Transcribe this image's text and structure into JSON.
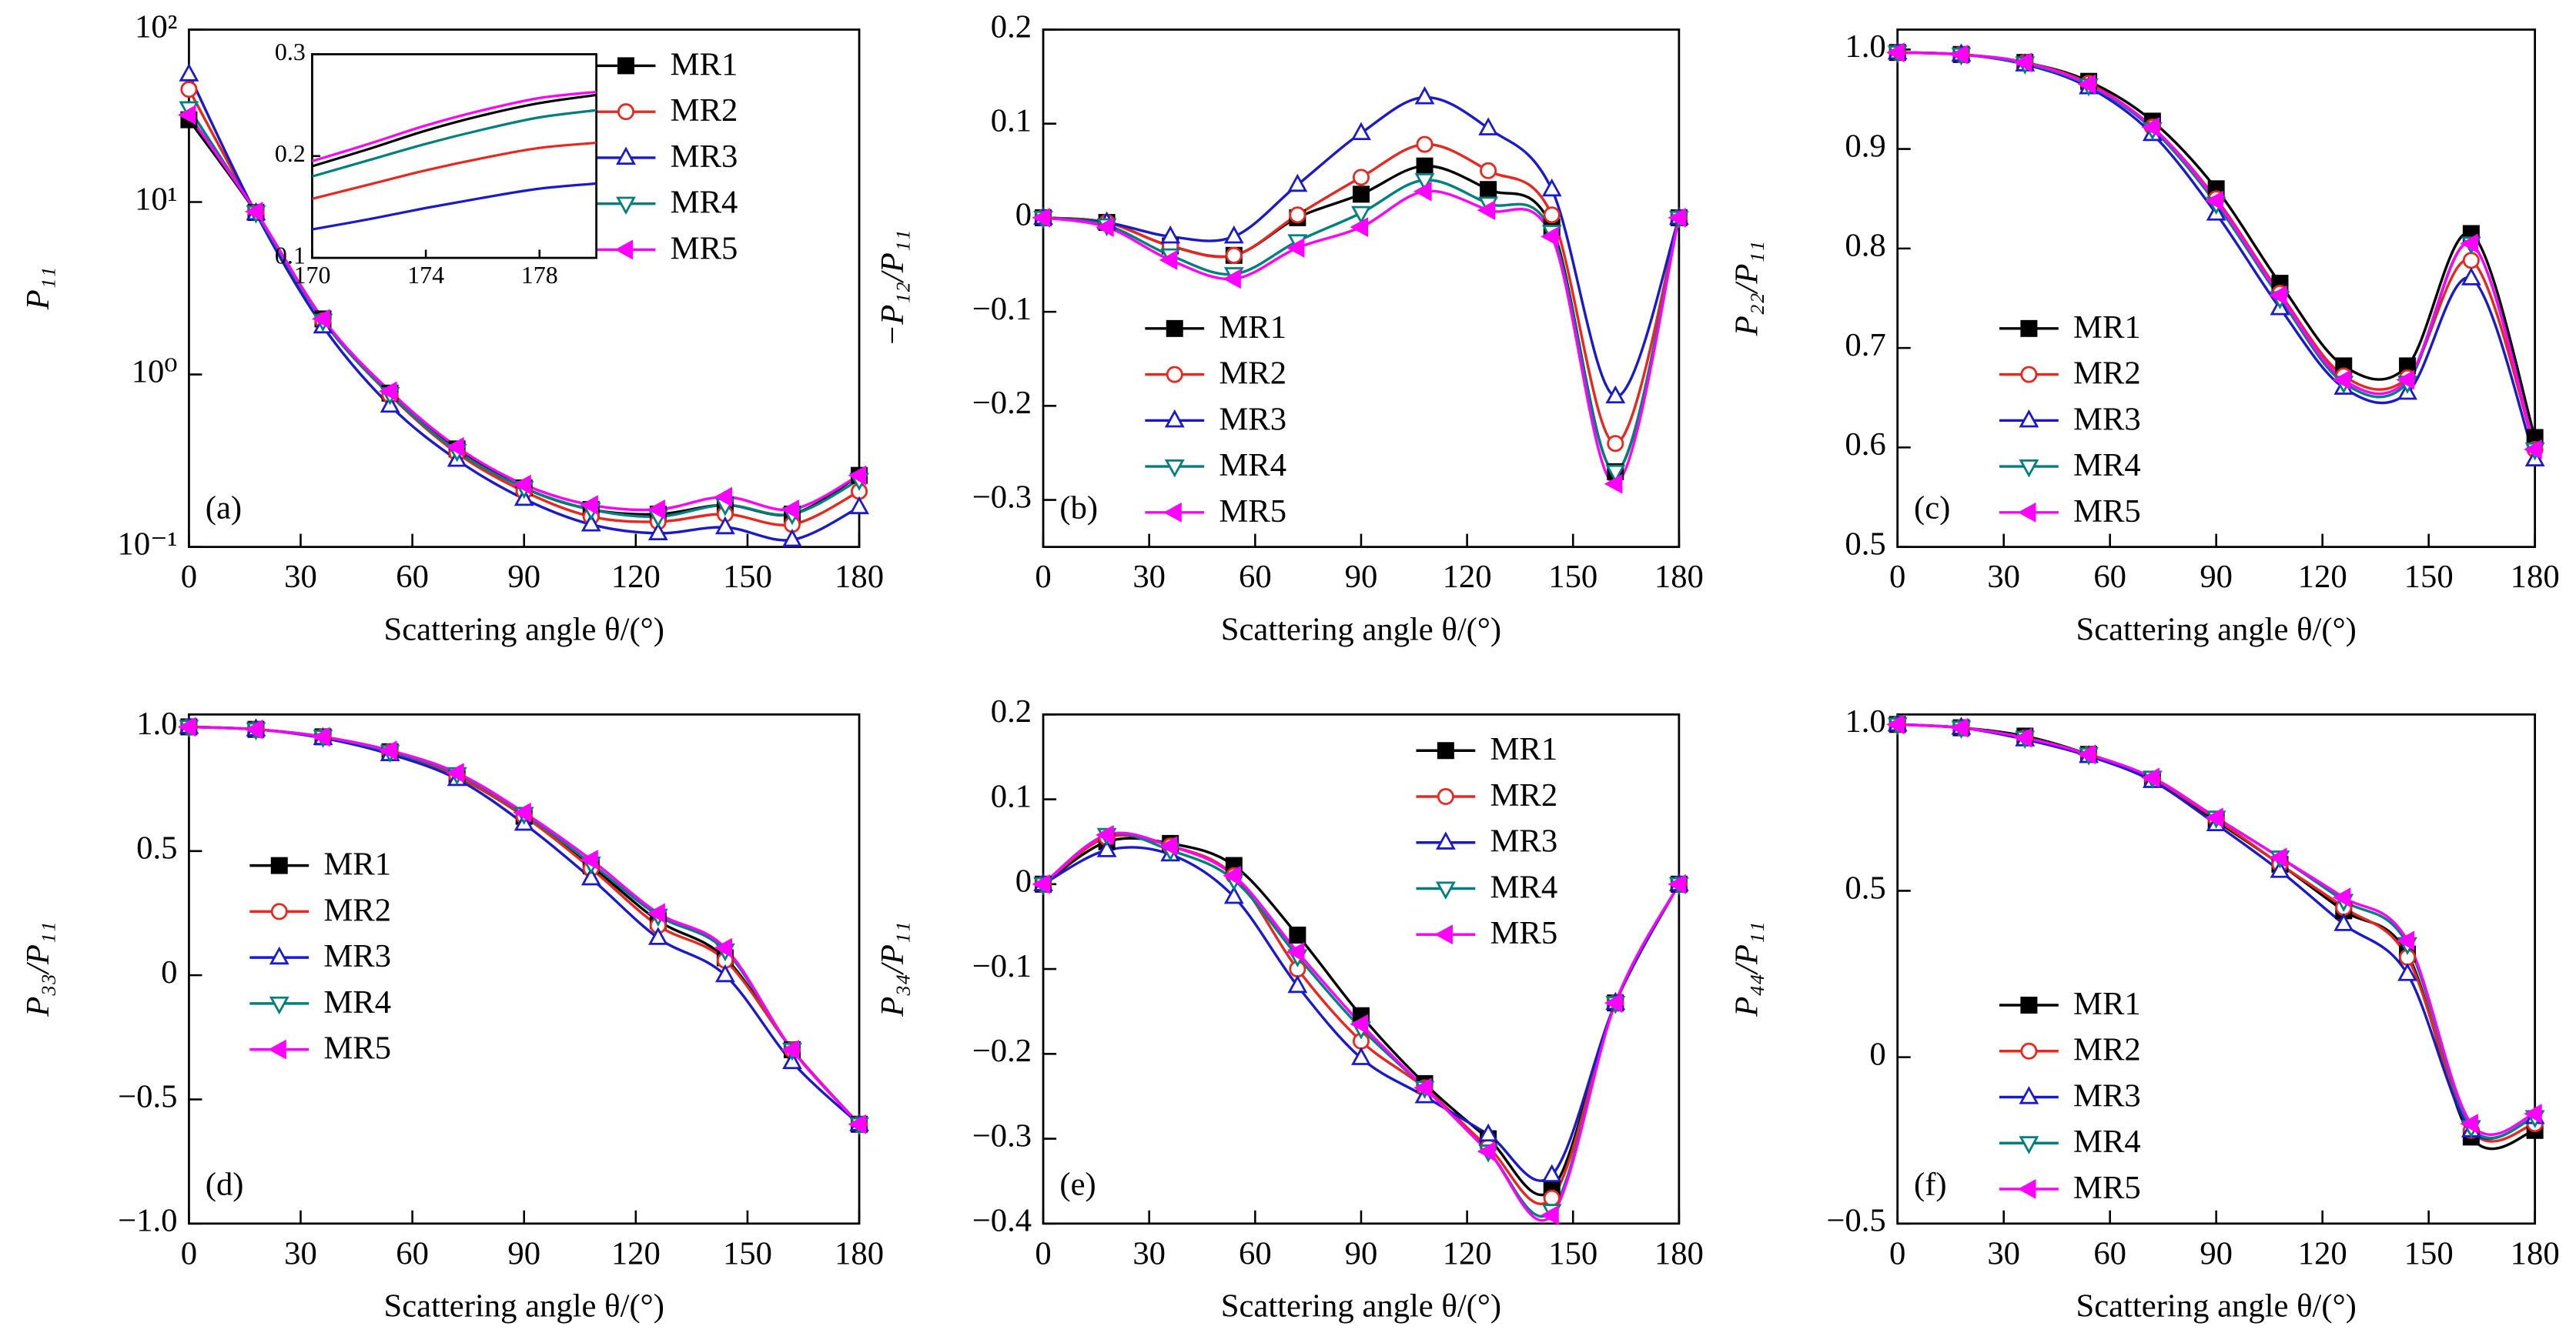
{
  "chart_data": [
    {
      "type": "line",
      "panel_label": "(a)",
      "ylabel": "P₁₁",
      "xlabel": "Scattering angle θ/(°)",
      "log": true,
      "xlim": [
        0,
        180
      ],
      "xticks": [
        0,
        30,
        60,
        90,
        120,
        150,
        180
      ],
      "ylim": [
        0.1,
        100
      ],
      "yticks": [
        {
          "value": 0.1,
          "label": "10⁻¹"
        },
        {
          "value": 1,
          "label": "10⁰"
        },
        {
          "value": 10,
          "label": "10¹"
        },
        {
          "value": 100,
          "label": "10²"
        }
      ],
      "legend": "upper right",
      "x": [
        0,
        18,
        36,
        54,
        72,
        90,
        108,
        126,
        144,
        162,
        180
      ],
      "series": [
        {
          "name": "MR1",
          "color": "#000000",
          "marker": "square",
          "values": [
            30,
            8.7,
            2.1,
            0.78,
            0.37,
            0.22,
            0.165,
            0.155,
            0.175,
            0.155,
            0.26
          ]
        },
        {
          "name": "MR2",
          "color": "#e8281e",
          "marker": "circle",
          "values": [
            45,
            8.7,
            2.05,
            0.76,
            0.35,
            0.21,
            0.15,
            0.14,
            0.155,
            0.135,
            0.21
          ]
        },
        {
          "name": "MR3",
          "color": "#1a1acc",
          "marker": "triangle-up",
          "values": [
            55,
            8.6,
            1.9,
            0.66,
            0.32,
            0.19,
            0.135,
            0.12,
            0.13,
            0.11,
            0.17
          ]
        },
        {
          "name": "MR4",
          "color": "#007f7f",
          "marker": "triangle-down",
          "values": [
            35,
            8.7,
            2.05,
            0.77,
            0.36,
            0.22,
            0.165,
            0.15,
            0.175,
            0.155,
            0.245
          ]
        },
        {
          "name": "MR5",
          "color": "#ff00ff",
          "marker": "triangle-left",
          "values": [
            32,
            8.8,
            2.1,
            0.8,
            0.38,
            0.23,
            0.175,
            0.165,
            0.195,
            0.165,
            0.26
          ]
        }
      ],
      "inset": {
        "xlim": [
          170,
          180
        ],
        "xticks": [
          170,
          174,
          178
        ],
        "ylim": [
          0.1,
          0.3
        ],
        "yticks": [
          0.1,
          0.2,
          0.3
        ],
        "x": [
          170,
          172,
          174,
          176,
          178,
          180
        ],
        "series": [
          {
            "color": "#000000",
            "values": [
              0.19,
              0.207,
              0.225,
              0.24,
              0.252,
              0.26
            ]
          },
          {
            "color": "#e8281e",
            "values": [
              0.158,
              0.172,
              0.186,
              0.198,
              0.208,
              0.213
            ]
          },
          {
            "color": "#1a1acc",
            "values": [
              0.128,
              0.138,
              0.149,
              0.159,
              0.168,
              0.173
            ]
          },
          {
            "color": "#007f7f",
            "values": [
              0.18,
              0.196,
              0.212,
              0.226,
              0.238,
              0.245
            ]
          },
          {
            "color": "#ff00ff",
            "values": [
              0.195,
              0.212,
              0.23,
              0.245,
              0.257,
              0.263
            ]
          }
        ]
      }
    },
    {
      "type": "line",
      "panel_label": "(b)",
      "ylabel": "−P₁₂/P₁₁",
      "xlabel": "Scattering angle θ/(°)",
      "xlim": [
        0,
        180
      ],
      "xticks": [
        0,
        30,
        60,
        90,
        120,
        150,
        180
      ],
      "ylim": [
        -0.35,
        0.2
      ],
      "yticks": [
        {
          "value": -0.3,
          "label": "−0.3"
        },
        {
          "value": -0.2,
          "label": "−0.2"
        },
        {
          "value": -0.1,
          "label": "−0.1"
        },
        0,
        0.1,
        0.2
      ],
      "legend": "lower left",
      "x": [
        0,
        18,
        36,
        54,
        72,
        90,
        108,
        126,
        144,
        162,
        180
      ],
      "series": [
        {
          "name": "MR1",
          "color": "#000000",
          "marker": "square",
          "values": [
            0,
            -0.005,
            -0.03,
            -0.04,
            0,
            0.025,
            0.055,
            0.03,
            -0.01,
            -0.27,
            0
          ]
        },
        {
          "name": "MR2",
          "color": "#e8281e",
          "marker": "circle",
          "values": [
            0,
            -0.005,
            -0.03,
            -0.04,
            0.003,
            0.043,
            0.078,
            0.05,
            0.003,
            -0.24,
            0
          ]
        },
        {
          "name": "MR3",
          "color": "#1a1acc",
          "marker": "triangle-up",
          "values": [
            0,
            -0.005,
            -0.02,
            -0.02,
            0.035,
            0.09,
            0.128,
            0.095,
            0.03,
            -0.19,
            0
          ]
        },
        {
          "name": "MR4",
          "color": "#007f7f",
          "marker": "triangle-down",
          "values": [
            0,
            -0.008,
            -0.04,
            -0.06,
            -0.025,
            0.005,
            0.04,
            0.015,
            -0.015,
            -0.27,
            0
          ]
        },
        {
          "name": "MR5",
          "color": "#ff00ff",
          "marker": "triangle-left",
          "values": [
            0,
            -0.01,
            -0.045,
            -0.065,
            -0.032,
            -0.01,
            0.028,
            0.008,
            -0.02,
            -0.283,
            0
          ]
        }
      ]
    },
    {
      "type": "line",
      "panel_label": "(c)",
      "ylabel": "P₂₂/P₁₁",
      "xlabel": "Scattering angle θ/(°)",
      "xlim": [
        0,
        180
      ],
      "xticks": [
        0,
        30,
        60,
        90,
        120,
        150,
        180
      ],
      "ylim": [
        0.5,
        1.02
      ],
      "yticks": [
        0.5,
        0.6,
        0.7,
        0.8,
        0.9,
        {
          "value": 1,
          "label": "1.0"
        }
      ],
      "legend": "lower left",
      "x": [
        0,
        18,
        36,
        54,
        72,
        90,
        108,
        126,
        144,
        162,
        180
      ],
      "series": [
        {
          "name": "MR1",
          "color": "#000000",
          "marker": "square",
          "values": [
            0.997,
            0.995,
            0.987,
            0.968,
            0.928,
            0.86,
            0.765,
            0.682,
            0.682,
            0.815,
            0.61
          ]
        },
        {
          "name": "MR2",
          "color": "#e8281e",
          "marker": "circle",
          "values": [
            0.997,
            0.995,
            0.987,
            0.966,
            0.922,
            0.85,
            0.755,
            0.672,
            0.67,
            0.788,
            0.598
          ]
        },
        {
          "name": "MR3",
          "color": "#1a1acc",
          "marker": "triangle-up",
          "values": [
            0.997,
            0.995,
            0.985,
            0.962,
            0.915,
            0.835,
            0.74,
            0.66,
            0.655,
            0.77,
            0.588
          ]
        },
        {
          "name": "MR4",
          "color": "#007f7f",
          "marker": "triangle-down",
          "values": [
            0.997,
            0.995,
            0.986,
            0.964,
            0.92,
            0.845,
            0.75,
            0.665,
            0.665,
            0.805,
            0.598
          ]
        },
        {
          "name": "MR5",
          "color": "#ff00ff",
          "marker": "triangle-left",
          "values": [
            0.997,
            0.995,
            0.987,
            0.965,
            0.922,
            0.848,
            0.753,
            0.668,
            0.668,
            0.805,
            0.598
          ]
        }
      ]
    },
    {
      "type": "line",
      "panel_label": "(d)",
      "ylabel": "P₃₃/P₁₁",
      "xlabel": "Scattering angle θ/(°)",
      "xlim": [
        0,
        180
      ],
      "xticks": [
        0,
        30,
        60,
        90,
        120,
        150,
        180
      ],
      "ylim": [
        -1,
        1.05
      ],
      "yticks": [
        {
          "value": -1,
          "label": "−1.0"
        },
        {
          "value": -0.5,
          "label": "−0.5"
        },
        0,
        0.5,
        {
          "value": 1,
          "label": "1.0"
        }
      ],
      "legend": "center left",
      "x": [
        0,
        18,
        36,
        54,
        72,
        90,
        108,
        126,
        144,
        162,
        180
      ],
      "series": [
        {
          "name": "MR1",
          "color": "#000000",
          "marker": "square",
          "values": [
            1,
            0.99,
            0.96,
            0.9,
            0.8,
            0.64,
            0.44,
            0.22,
            0.07,
            -0.3,
            -0.6
          ]
        },
        {
          "name": "MR2",
          "color": "#e8281e",
          "marker": "circle",
          "values": [
            1,
            0.99,
            0.96,
            0.9,
            0.8,
            0.64,
            0.43,
            0.2,
            0.06,
            -0.3,
            -0.6
          ]
        },
        {
          "name": "MR3",
          "color": "#1a1acc",
          "marker": "triangle-up",
          "values": [
            1,
            0.99,
            0.955,
            0.89,
            0.79,
            0.61,
            0.39,
            0.15,
            0,
            -0.35,
            -0.6
          ]
        },
        {
          "name": "MR4",
          "color": "#007f7f",
          "marker": "triangle-down",
          "values": [
            1,
            0.99,
            0.96,
            0.9,
            0.81,
            0.65,
            0.45,
            0.24,
            0.1,
            -0.3,
            -0.6
          ]
        },
        {
          "name": "MR5",
          "color": "#ff00ff",
          "marker": "triangle-left",
          "values": [
            1,
            0.99,
            0.96,
            0.905,
            0.815,
            0.655,
            0.465,
            0.25,
            0.11,
            -0.3,
            -0.6
          ]
        }
      ]
    },
    {
      "type": "line",
      "panel_label": "(e)",
      "ylabel": "P₃₄/P₁₁",
      "xlabel": "Scattering angle θ/(°)",
      "xlim": [
        0,
        180
      ],
      "xticks": [
        0,
        30,
        60,
        90,
        120,
        150,
        180
      ],
      "ylim": [
        -0.4,
        0.2
      ],
      "yticks": [
        {
          "value": -0.4,
          "label": "−0.4"
        },
        {
          "value": -0.3,
          "label": "−0.3"
        },
        {
          "value": -0.2,
          "label": "−0.2"
        },
        {
          "value": -0.1,
          "label": "−0.1"
        },
        0,
        0.1,
        0.2
      ],
      "legend": "upper right",
      "x": [
        0,
        18,
        36,
        54,
        72,
        90,
        108,
        126,
        144,
        162,
        180
      ],
      "series": [
        {
          "name": "MR1",
          "color": "#000000",
          "marker": "square",
          "values": [
            0,
            0.05,
            0.048,
            0.022,
            -0.06,
            -0.155,
            -0.235,
            -0.3,
            -0.36,
            -0.14,
            0
          ]
        },
        {
          "name": "MR2",
          "color": "#e8281e",
          "marker": "circle",
          "values": [
            0,
            0.055,
            0.045,
            0.01,
            -0.1,
            -0.185,
            -0.24,
            -0.31,
            -0.37,
            -0.14,
            0
          ]
        },
        {
          "name": "MR3",
          "color": "#1a1acc",
          "marker": "triangle-up",
          "values": [
            0,
            0.04,
            0.035,
            -0.015,
            -0.12,
            -0.205,
            -0.25,
            -0.295,
            -0.343,
            -0.14,
            0
          ]
        },
        {
          "name": "MR4",
          "color": "#007f7f",
          "marker": "triangle-down",
          "values": [
            0,
            0.058,
            0.04,
            0.005,
            -0.085,
            -0.17,
            -0.24,
            -0.315,
            -0.385,
            -0.14,
            0
          ]
        },
        {
          "name": "MR5",
          "color": "#ff00ff",
          "marker": "triangle-left",
          "values": [
            0,
            0.058,
            0.045,
            0.01,
            -0.08,
            -0.165,
            -0.24,
            -0.315,
            -0.39,
            -0.14,
            0
          ]
        }
      ]
    },
    {
      "type": "line",
      "panel_label": "(f)",
      "ylabel": "P₄₄/P₁₁",
      "xlabel": "Scattering angle θ/(°)",
      "xlim": [
        0,
        180
      ],
      "xticks": [
        0,
        30,
        60,
        90,
        120,
        150,
        180
      ],
      "ylim": [
        -0.5,
        1.03
      ],
      "yticks": [
        {
          "value": -0.5,
          "label": "−0.5"
        },
        0,
        0.5,
        {
          "value": 1,
          "label": "1.0"
        }
      ],
      "legend": "lower left",
      "x": [
        0,
        18,
        36,
        54,
        72,
        90,
        108,
        126,
        144,
        162,
        180
      ],
      "series": [
        {
          "name": "MR1",
          "color": "#000000",
          "marker": "square",
          "values": [
            1,
            0.99,
            0.965,
            0.91,
            0.835,
            0.71,
            0.58,
            0.44,
            0.31,
            -0.24,
            -0.22
          ]
        },
        {
          "name": "MR2",
          "color": "#e8281e",
          "marker": "circle",
          "values": [
            1,
            0.99,
            0.96,
            0.91,
            0.835,
            0.715,
            0.58,
            0.45,
            0.3,
            -0.22,
            -0.2
          ]
        },
        {
          "name": "MR3",
          "color": "#1a1acc",
          "marker": "triangle-up",
          "values": [
            1,
            0.99,
            0.955,
            0.905,
            0.83,
            0.7,
            0.56,
            0.4,
            0.25,
            -0.22,
            -0.18
          ]
        },
        {
          "name": "MR4",
          "color": "#007f7f",
          "marker": "triangle-down",
          "values": [
            1,
            0.99,
            0.96,
            0.91,
            0.84,
            0.72,
            0.6,
            0.47,
            0.34,
            -0.21,
            -0.18
          ]
        },
        {
          "name": "MR5",
          "color": "#ff00ff",
          "marker": "triangle-left",
          "values": [
            1,
            0.99,
            0.96,
            0.91,
            0.84,
            0.72,
            0.6,
            0.48,
            0.35,
            -0.2,
            -0.17
          ]
        }
      ]
    }
  ]
}
